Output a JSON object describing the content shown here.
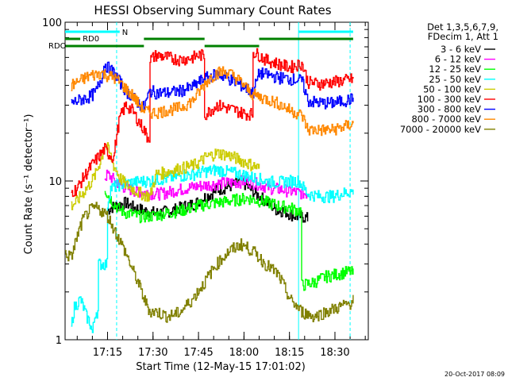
{
  "chart_data": {
    "type": "line",
    "title": "HESSI Observing Summary Count Rates",
    "xlabel": "Start Time (12-May-15 17:01:02)",
    "ylabel": "Count Rate (s⁻¹ detector⁻¹)",
    "y_scale": "log",
    "ylim": [
      1,
      100
    ],
    "xlim_minutes": [
      0,
      100
    ],
    "x_tick_labels": [
      {
        "t": 14,
        "label": "17:15"
      },
      {
        "t": 29,
        "label": "17:30"
      },
      {
        "t": 44,
        "label": "17:45"
      },
      {
        "t": 59,
        "label": "18:00"
      },
      {
        "t": 74,
        "label": "18:15"
      },
      {
        "t": 89,
        "label": "18:30"
      }
    ],
    "y_tick_labels": [
      {
        "v": 1,
        "label": "1"
      },
      {
        "v": 10,
        "label": "10"
      },
      {
        "v": 100,
        "label": "100"
      }
    ],
    "legend_header": [
      "Det 1,3,5,6,7,9,",
      "FDecim 1, Att 1"
    ],
    "legend_position": "right-outside",
    "series": [
      {
        "name": "3 - 6 keV",
        "color": "#000000",
        "t": [
          14,
          15,
          17,
          20,
          22,
          26,
          28,
          30,
          35,
          40,
          43,
          44,
          46,
          48,
          50,
          52,
          56,
          58,
          60,
          62,
          64,
          66,
          68,
          70,
          72,
          74,
          76,
          78,
          80
        ],
        "values": [
          6.5,
          6.8,
          7.0,
          7.3,
          6.9,
          6.5,
          6.4,
          6.3,
          6.5,
          7.0,
          7.2,
          7.5,
          7.9,
          8.3,
          8.8,
          9.0,
          9.5,
          10.0,
          9.3,
          8.5,
          8.0,
          7.5,
          7.0,
          6.5,
          6.5,
          6.2,
          6.0,
          6.0,
          5.8
        ]
      },
      {
        "name": "6 - 12 keV",
        "color": "#ff00ff",
        "t": [
          13,
          14,
          16,
          18,
          20,
          22,
          24,
          26,
          28,
          30,
          33,
          36,
          40,
          44,
          48,
          52,
          56,
          60,
          64,
          68,
          72,
          76,
          80
        ],
        "values": [
          10.5,
          11.0,
          10.2,
          9.5,
          9.0,
          8.8,
          8.6,
          8.5,
          8.4,
          8.3,
          8.4,
          8.7,
          9.0,
          9.3,
          9.5,
          9.7,
          9.8,
          10.0,
          9.5,
          9.0,
          8.8,
          8.5,
          8.3
        ]
      },
      {
        "name": "12 - 25 keV",
        "color": "#00ff00",
        "t": [
          13,
          14,
          16,
          18,
          20,
          22,
          24,
          26,
          28,
          30,
          34,
          38,
          42,
          44,
          48,
          52,
          56,
          60,
          64,
          66,
          70,
          74,
          77,
          78,
          82,
          86,
          90,
          94,
          95
        ],
        "values": [
          9.0,
          8.2,
          7.2,
          6.6,
          6.3,
          6.2,
          6.0,
          6.0,
          6.0,
          6.1,
          6.3,
          6.5,
          6.8,
          7.0,
          7.2,
          7.4,
          7.6,
          7.8,
          7.5,
          7.4,
          7.0,
          6.8,
          6.5,
          2.2,
          2.3,
          2.5,
          2.6,
          2.7,
          2.6
        ]
      },
      {
        "name": "25 - 50 keV",
        "color": "#00ffff",
        "t": [
          2,
          3,
          5,
          7,
          8,
          9,
          10,
          11,
          14,
          15,
          18,
          22,
          26,
          28,
          30,
          34,
          38,
          42,
          44,
          46,
          48,
          50,
          52,
          56,
          58,
          60,
          62,
          64,
          66,
          70,
          74,
          77,
          80,
          84,
          88,
          90,
          93,
          95
        ],
        "values": [
          1.2,
          1.6,
          1.8,
          1.4,
          1.3,
          1.1,
          1.5,
          3.0,
          7.2,
          9.0,
          9.5,
          9.8,
          10.0,
          10.0,
          10.2,
          10.4,
          10.8,
          11.0,
          11.3,
          11.5,
          11.6,
          11.8,
          11.6,
          11.2,
          11.0,
          10.8,
          10.5,
          10.3,
          10.0,
          9.8,
          10.0,
          10.0,
          8.3,
          8.0,
          8.0,
          8.2,
          8.5,
          8.6
        ]
      },
      {
        "name": "50 - 100 keV",
        "color": "#cccc00",
        "t": [
          2,
          4,
          6,
          8,
          10,
          12,
          13,
          14,
          16,
          18,
          20,
          22,
          24,
          26,
          28,
          30,
          34,
          38,
          42,
          44,
          46,
          48,
          50,
          52,
          54,
          56,
          58,
          60,
          62,
          64
        ],
        "values": [
          7.0,
          7.5,
          8.5,
          9.5,
          11.0,
          14.0,
          17.0,
          16.0,
          12.5,
          10.5,
          9.5,
          9.0,
          8.5,
          8.2,
          8.0,
          11.0,
          11.5,
          12.0,
          12.5,
          13.0,
          14.0,
          14.5,
          15.0,
          14.8,
          14.5,
          14.0,
          13.5,
          13.0,
          12.5,
          12.0
        ]
      },
      {
        "name": "100 - 300 keV",
        "color": "#ff0000",
        "t": [
          2,
          4,
          6,
          8,
          10,
          12,
          13,
          14,
          16,
          18,
          20,
          22,
          24,
          26,
          27,
          28,
          30,
          34,
          38,
          42,
          44,
          46,
          48,
          50,
          52,
          54,
          56,
          58,
          60,
          62,
          64,
          66,
          70,
          74,
          78,
          80,
          84,
          88,
          92,
          95
        ],
        "values": [
          8.5,
          9.0,
          10.5,
          12.0,
          13.5,
          15.0,
          16.0,
          15.0,
          14.0,
          25.0,
          30.0,
          28.0,
          24.0,
          21.0,
          19.0,
          58.0,
          62.0,
          60.0,
          58.0,
          60.0,
          62.0,
          26.0,
          28.0,
          30.0,
          29.5,
          28.5,
          28.0,
          27.0,
          26.5,
          65.0,
          62.0,
          58.0,
          55.0,
          52.0,
          55.0,
          42.0,
          41.0,
          42.0,
          43.0,
          44.0
        ]
      },
      {
        "name": "300 - 800 keV",
        "color": "#0000ff",
        "t": [
          2,
          4,
          6,
          8,
          10,
          12,
          13,
          14,
          16,
          18,
          20,
          22,
          24,
          26,
          28,
          30,
          34,
          38,
          42,
          44,
          46,
          48,
          50,
          52,
          54,
          56,
          58,
          60,
          62,
          64,
          66,
          70,
          74,
          78,
          80,
          84,
          88,
          92,
          95
        ],
        "values": [
          31,
          32,
          33,
          34,
          36,
          45,
          55,
          52,
          48,
          42,
          37,
          34,
          31,
          29,
          37,
          36,
          36,
          37,
          39,
          42,
          44,
          46,
          47,
          46,
          44,
          42,
          40,
          38,
          36,
          48,
          47,
          45,
          44,
          43,
          32,
          31,
          31,
          32,
          33
        ]
      },
      {
        "name": "800 - 7000 keV",
        "color": "#ff8800",
        "t": [
          2,
          4,
          6,
          8,
          10,
          12,
          13,
          14,
          16,
          18,
          20,
          22,
          24,
          26,
          28,
          30,
          34,
          38,
          42,
          44,
          46,
          48,
          50,
          52,
          54,
          56,
          58,
          60,
          62,
          64,
          66,
          70,
          74,
          78,
          80,
          84,
          88,
          92,
          95
        ],
        "values": [
          40,
          42,
          44,
          46,
          47,
          48,
          47,
          46,
          45,
          42,
          38,
          35,
          31,
          28,
          27,
          27,
          28,
          29,
          32,
          36,
          41,
          45,
          48,
          49,
          48,
          45,
          42,
          38,
          35,
          34,
          33,
          31,
          28,
          26,
          21,
          21,
          21,
          22,
          23
        ]
      },
      {
        "name": "7000 - 20000 keV",
        "color": "#808000",
        "t": [
          0,
          2,
          4,
          6,
          8,
          10,
          12,
          14,
          16,
          18,
          20,
          22,
          24,
          26,
          28,
          30,
          34,
          38,
          42,
          46,
          50,
          54,
          58,
          62,
          66,
          70,
          74,
          78,
          82,
          86,
          90,
          94,
          95
        ],
        "values": [
          3.5,
          3.3,
          4.5,
          5.8,
          6.5,
          6.8,
          6.5,
          6.0,
          5.0,
          4.2,
          3.5,
          2.8,
          2.3,
          1.8,
          1.5,
          1.5,
          1.4,
          1.5,
          1.8,
          2.3,
          3.0,
          3.6,
          4.0,
          3.6,
          3.0,
          2.6,
          1.8,
          1.5,
          1.4,
          1.5,
          1.6,
          1.7,
          1.8
        ]
      }
    ],
    "attenuator_bars": [
      {
        "label": "N",
        "color": "#00ffff",
        "row": 0,
        "segments": [
          [
            0,
            18
          ],
          [
            77,
            95
          ]
        ]
      },
      {
        "label": "RD0",
        "color": "#008000",
        "row": 1,
        "segments": [
          [
            0,
            5
          ],
          [
            26,
            46
          ],
          [
            64,
            95
          ]
        ]
      },
      {
        "label": "RDO",
        "color": "#008000",
        "row": 2,
        "segments": [
          [
            0,
            26
          ],
          [
            46,
            64
          ]
        ]
      }
    ],
    "vertical_markers": [
      {
        "t": 17,
        "color": "#00ffff",
        "style": "dashed"
      },
      {
        "t": 77,
        "color": "#00ffff",
        "style": "solid"
      },
      {
        "t": 94,
        "color": "#00ffff",
        "style": "dashed"
      }
    ]
  },
  "footer": {
    "timestamp": "20-Oct-2017 08:09"
  }
}
